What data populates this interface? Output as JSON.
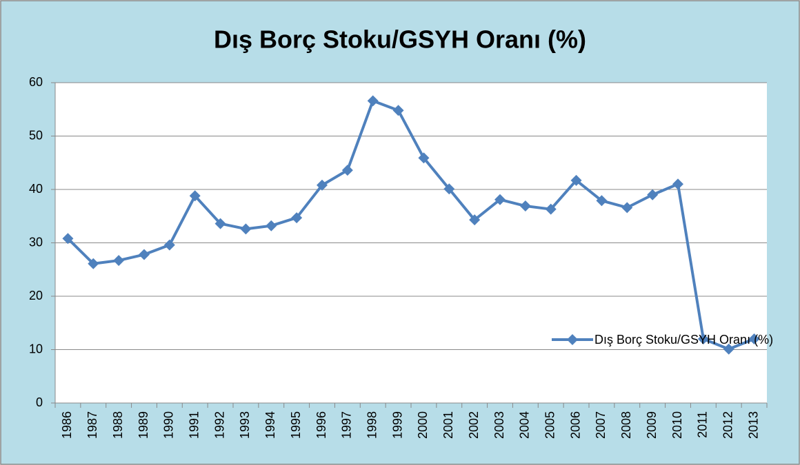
{
  "chart_data": {
    "type": "line",
    "title": "Dış Borç Stoku/GSYH Oranı (%)",
    "categories": [
      "1986",
      "1987",
      "1988",
      "1989",
      "1990",
      "1991",
      "1992",
      "1993",
      "1994",
      "1995",
      "1996",
      "1997",
      "1998",
      "1999",
      "2000",
      "2001",
      "2002",
      "2003",
      "2004",
      "2005",
      "2006",
      "2007",
      "2008",
      "2009",
      "2010",
      "2011",
      "2012",
      "2013"
    ],
    "series": [
      {
        "name": "Dış Borç Stoku/GSYH Oranı (%)",
        "color": "#4f81bd",
        "values": [
          30.8,
          26.1,
          26.7,
          27.8,
          29.6,
          38.8,
          33.6,
          32.6,
          33.2,
          34.7,
          40.8,
          43.6,
          56.6,
          54.8,
          45.9,
          40.1,
          34.3,
          38.1,
          36.9,
          36.3,
          41.7,
          37.9,
          36.6,
          39.0,
          41.0,
          12.0,
          10.1,
          12.0
        ]
      }
    ],
    "ylim": [
      0,
      60
    ],
    "yticks": [
      0,
      10,
      20,
      30,
      40,
      50,
      60
    ],
    "grid": true,
    "legend": "right"
  }
}
